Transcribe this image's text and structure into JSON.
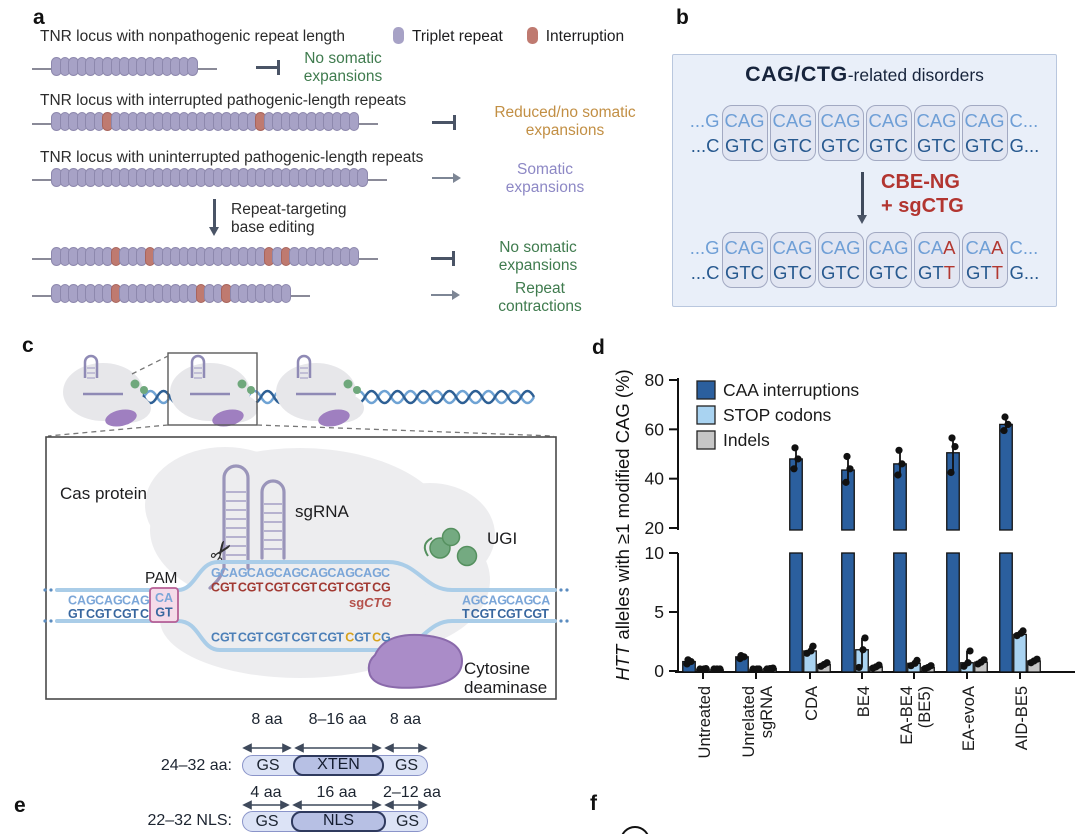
{
  "panel_a": {
    "label": "a",
    "pill_color": "#a7a2c6",
    "interruption_color": "#bf7a70",
    "legend": [
      {
        "label": "Triplet repeat",
        "color": "#a7a2c6"
      },
      {
        "label": "Interruption",
        "color": "#bf7a70"
      }
    ],
    "rows": [
      {
        "title": "TNR locus with nonpathogenic repeat length",
        "pills": 17,
        "reds": [],
        "connector": "inhibit",
        "outcome": [
          "No somatic",
          "expansions"
        ],
        "outcome_color": "#3f7b4e"
      },
      {
        "title": "TNR locus with interrupted pathogenic-length repeats",
        "pills": 36,
        "reds": [
          6,
          24
        ],
        "connector": "inhibit",
        "outcome": [
          "Reduced/no somatic",
          "expansions"
        ],
        "outcome_color": "#c28f44"
      },
      {
        "title": "TNR locus with uninterrupted pathogenic-length repeats",
        "pills": 37,
        "reds": [],
        "connector": "arrow",
        "outcome": [
          "Somatic",
          "expansions"
        ],
        "outcome_color": "#8d88c5"
      },
      {
        "title": "",
        "pills": 36,
        "reds": [
          7,
          11,
          25,
          27
        ],
        "connector": "inhibit",
        "outcome": [
          "No somatic",
          "expansions"
        ],
        "outcome_color": "#3f7b4e"
      },
      {
        "title": "",
        "pills": 28,
        "reds": [
          7,
          17,
          20
        ],
        "connector": "arrow",
        "outcome": [
          "Repeat",
          "contractions"
        ],
        "outcome_color": "#3f7b4e"
      }
    ],
    "edit_label": [
      "Repeat-targeting",
      "base editing"
    ]
  },
  "panel_b": {
    "label": "b",
    "title_main": "CAG/CTG",
    "title_rest": "-related disorders",
    "arrow_label": [
      "CBE-NG",
      "+ sgCTG"
    ],
    "before": {
      "lead_top": "...G",
      "lead_bot": "...C",
      "trail_top": "C...",
      "trail_bot": "G...",
      "codons": [
        {
          "t": "CAG",
          "b": "GTC"
        },
        {
          "t": "CAG",
          "b": "GTC"
        },
        {
          "t": "CAG",
          "b": "GTC"
        },
        {
          "t": "CAG",
          "b": "GTC"
        },
        {
          "t": "CAG",
          "b": "GTC"
        },
        {
          "t": "CAG",
          "b": "GTC"
        }
      ]
    },
    "after": {
      "lead_top": "...G",
      "lead_bot": "...C",
      "trail_top": "C...",
      "trail_bot": "G...",
      "codons": [
        {
          "t": "CAG",
          "b": "GTC"
        },
        {
          "t": "CAG",
          "b": "GTC"
        },
        {
          "t": "CAG",
          "b": "GTC"
        },
        {
          "t": "CAG",
          "b": "GTC"
        },
        {
          "t": "CAA",
          "b": "GTT",
          "hl": true
        },
        {
          "t": "CAA",
          "b": "GTT",
          "hl": true
        }
      ]
    }
  },
  "panel_c": {
    "label": "c",
    "cas_protein": "Cas protein",
    "sgrna": "sgRNA",
    "ugi": "UGI",
    "pam": "PAM",
    "deaminase": [
      "Cytosine",
      "deaminase"
    ],
    "sg_label": {
      "prefix": "sg",
      "italic": "CTG"
    },
    "colors": {
      "light_blue": "#7ba6d8",
      "dark_blue": "#38679f",
      "red": "#a23a33",
      "yellow": "#d7a21d",
      "mid_blue": "#4d80b8"
    },
    "seq": {
      "left_top": "CAGCAGCAG",
      "left_bot": "GTCGTCGTC",
      "pam_top": "CA",
      "pam_bot": "GT",
      "proto": "GCAGCAGCAGCAGCAGCAGC",
      "sg": "CGTCGTCGTCGTCGTCGTCG",
      "bottom": "CGTCGTCGTCGTCGTCGTCG",
      "bottom_yellow": [
        15,
        18
      ],
      "right_top": "AGCAGCAGCA",
      "right_bot": "TCGTCGTCGT"
    }
  },
  "panel_d": {
    "label": "d"
  },
  "panel_e": {
    "label": "e",
    "rows": [
      {
        "label": "24–32 aa:",
        "segs": [
          {
            "text": "GS",
            "len": "8 aa"
          },
          {
            "text": "XTEN",
            "len": "8–16 aa"
          },
          {
            "text": "GS",
            "len": "8 aa"
          }
        ]
      },
      {
        "label": "22–32 NLS:",
        "segs": [
          {
            "text": "GS",
            "len": "4 aa"
          },
          {
            "text": "NLS",
            "len": "16 aa"
          },
          {
            "text": "GS",
            "len": "2–12 aa"
          }
        ]
      }
    ]
  },
  "panel_f": {
    "label": "f"
  },
  "chart_data": {
    "type": "bar",
    "title": "",
    "xlabel": "",
    "ylabel": "HTT alleles with ≥1 modified CAG (%)",
    "ylabel_italic_prefix": "HTT",
    "categories": [
      "Untreated",
      "Unrelated|sgRNA",
      "CDA",
      "BE4",
      "EA-BE4|(BE5)",
      "EA-evoA",
      "AID-BE5"
    ],
    "axis": {
      "broken": true,
      "upper_range": [
        20,
        80
      ],
      "lower_range": [
        0,
        10
      ],
      "upper_ticks": [
        20,
        40,
        60,
        80
      ],
      "lower_ticks": [
        0,
        5,
        10
      ]
    },
    "legend_position": "top-left-inside",
    "grid": false,
    "series": [
      {
        "name": "CAA interruptions",
        "color": "#2b5f9e",
        "values": [
          0.8,
          1.2,
          48,
          43.5,
          46,
          50.5,
          62
        ],
        "points": [
          [
            0.6,
            0.8,
            0.95
          ],
          [
            1.05,
            1.2,
            1.3
          ],
          [
            44,
            48,
            52.5
          ],
          [
            38.5,
            44,
            49
          ],
          [
            41.5,
            46,
            51.5
          ],
          [
            42.5,
            53,
            56.5
          ],
          [
            59.5,
            62,
            65
          ]
        ]
      },
      {
        "name": "STOP codons",
        "color": "#a9d3f1",
        "values": [
          0.15,
          0.1,
          1.7,
          1.8,
          0.65,
          0.7,
          3.1
        ],
        "points": [
          [
            0.1,
            0.15,
            0.2
          ],
          [
            0.05,
            0.1,
            0.15
          ],
          [
            1.5,
            1.7,
            2.1
          ],
          [
            0.3,
            1.8,
            2.8
          ],
          [
            0.45,
            0.65,
            0.9
          ],
          [
            0.4,
            0.7,
            1.7
          ],
          [
            3.0,
            3.2,
            3.4
          ]
        ]
      },
      {
        "name": "Indels",
        "color": "#c6c6c6",
        "values": [
          0.1,
          0.2,
          0.55,
          0.35,
          0.3,
          0.75,
          0.85
        ],
        "points": [
          [
            0.05,
            0.1,
            0.15
          ],
          [
            0.15,
            0.2,
            0.25
          ],
          [
            0.4,
            0.55,
            0.7
          ],
          [
            0.25,
            0.35,
            0.5
          ],
          [
            0.2,
            0.3,
            0.45
          ],
          [
            0.6,
            0.75,
            0.95
          ],
          [
            0.7,
            0.85,
            1.0
          ]
        ]
      }
    ]
  }
}
